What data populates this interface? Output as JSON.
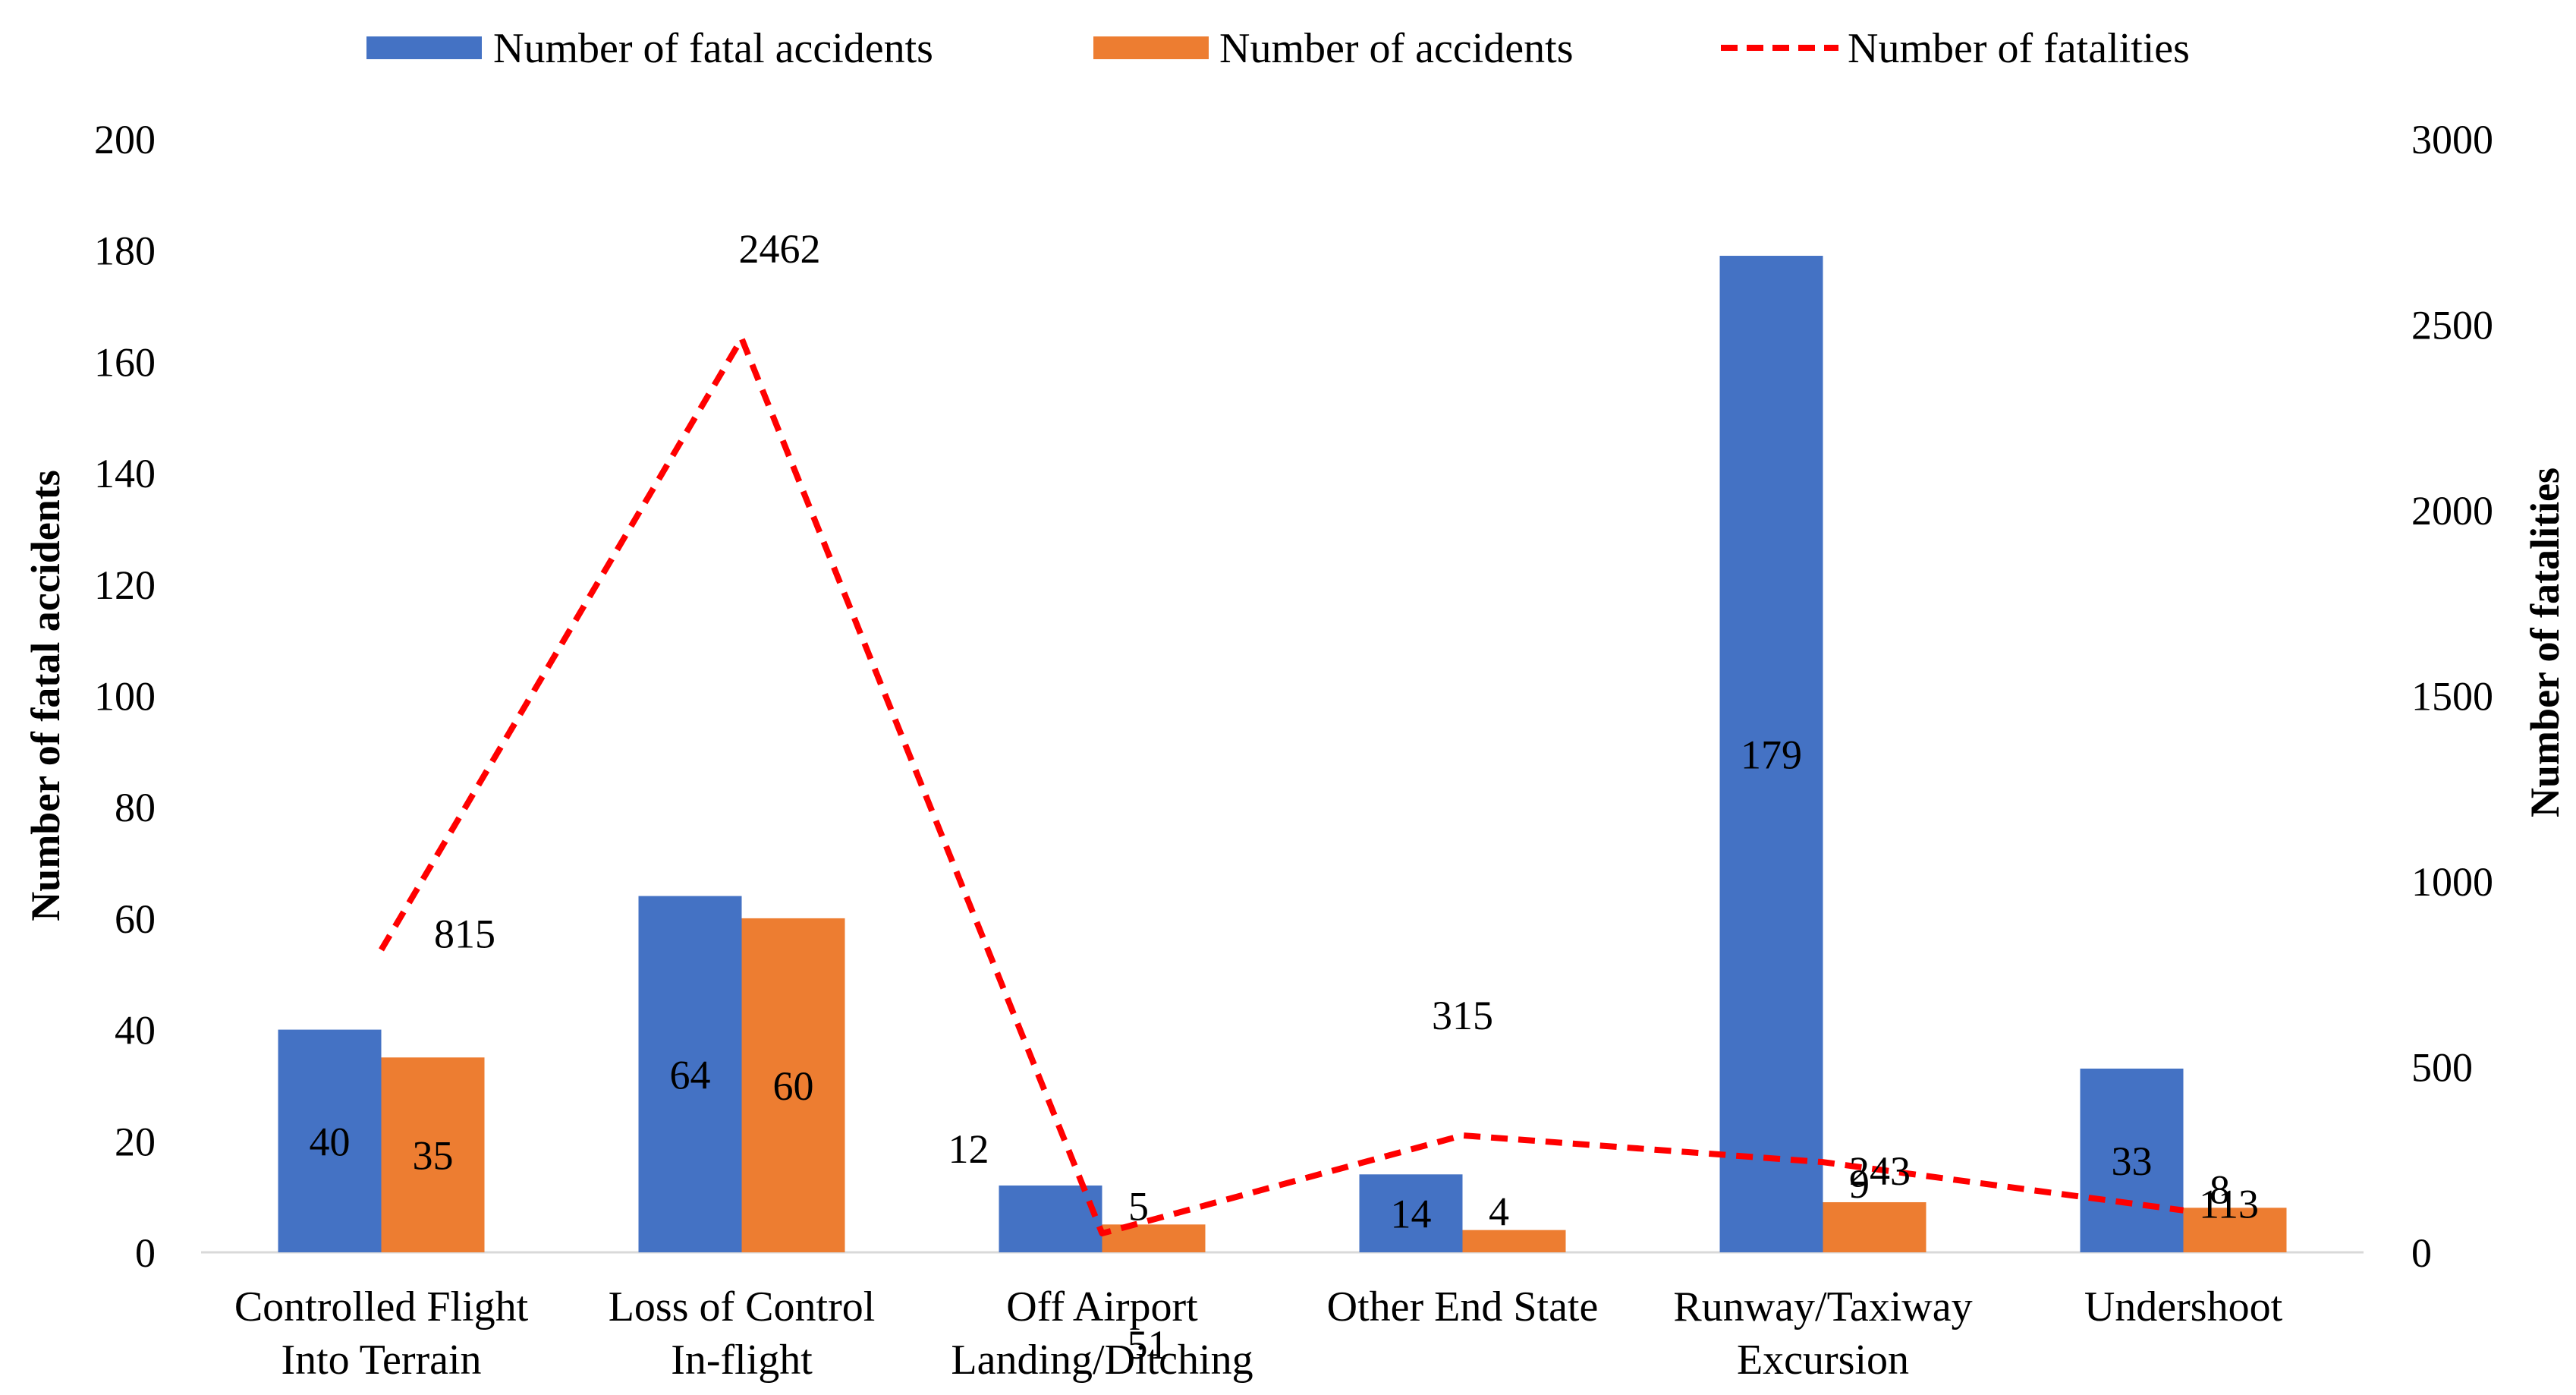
{
  "chart_data": {
    "type": "bar",
    "categories": [
      [
        "Controlled Flight",
        "Into Terrain"
      ],
      [
        "Loss of Control",
        "In-flight"
      ],
      [
        "Off Airport",
        "Landing/Ditching"
      ],
      [
        "Other End State"
      ],
      [
        "Runway/Taxiway",
        "Excursion"
      ],
      [
        "Undershoot"
      ]
    ],
    "series": [
      {
        "name": "Number of fatal accidents",
        "type": "bar",
        "axis": "left",
        "color": "#4472C4",
        "values": [
          40,
          64,
          12,
          14,
          179,
          33
        ],
        "labels": [
          "40",
          "64",
          "12",
          "14",
          "179",
          "33"
        ]
      },
      {
        "name": "Number of accidents",
        "type": "bar",
        "axis": "left",
        "color": "#ED7D31",
        "values": [
          35,
          60,
          5,
          4,
          9,
          8
        ],
        "labels": [
          "35",
          "60",
          "5",
          "4",
          "9",
          "8"
        ]
      },
      {
        "name": "Number of fatalities",
        "type": "line",
        "axis": "right",
        "color": "#FF0000",
        "dash": "dashed",
        "values": [
          815,
          2462,
          51,
          315,
          243,
          113
        ],
        "labels": [
          "815",
          "2462",
          "51",
          "315",
          "243",
          "113"
        ]
      }
    ],
    "y_left": {
      "label": "Number of fatal accidents",
      "min": 0,
      "max": 200,
      "step": 20
    },
    "y_right": {
      "label": "Number of fatalities",
      "min": 0,
      "max": 3000,
      "step": 500
    },
    "legend": "top",
    "grid": false
  }
}
